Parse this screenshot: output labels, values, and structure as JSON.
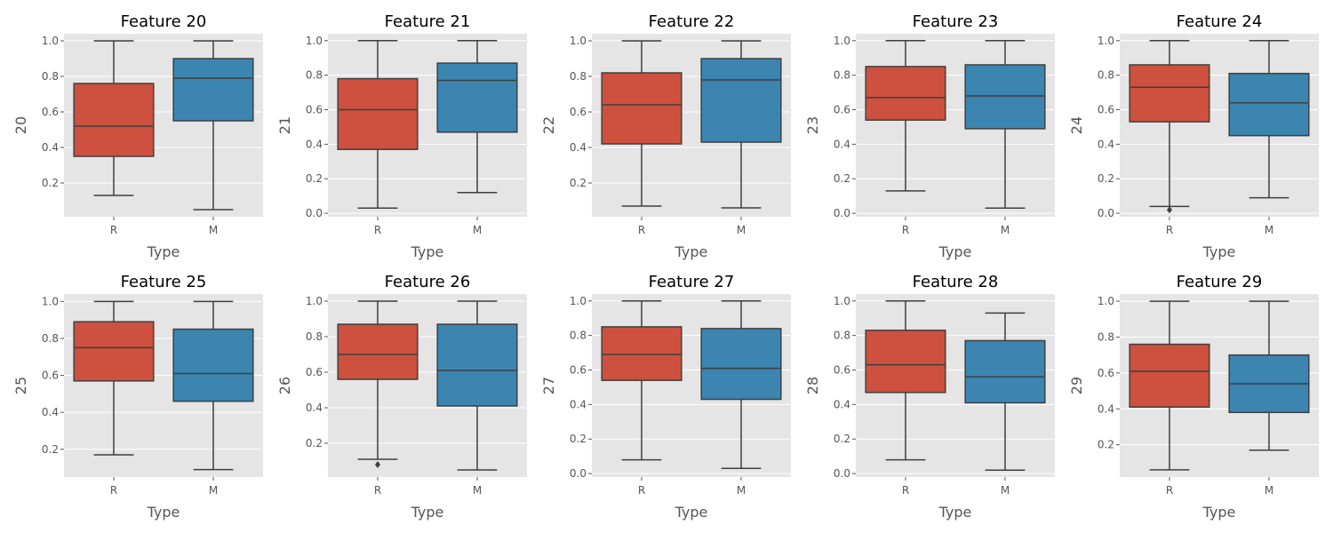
{
  "colors": {
    "background": "#ffffff",
    "panel_bg": "#e5e5e5",
    "grid": "#ffffff",
    "box_R": "#cd513e",
    "box_M": "#3b85b0",
    "line": "#3f3f3f",
    "tick_text": "#555555",
    "title_text": "#000000"
  },
  "chart_data": [
    {
      "type": "box",
      "title": "Feature 20",
      "xlabel": "Type",
      "ylabel": "20",
      "categories": [
        "R",
        "M"
      ],
      "ylim": [
        0.01,
        1.04
      ],
      "yticks": [
        "0.2",
        "0.4",
        "0.6",
        "0.8",
        "1.0"
      ],
      "boxes": [
        {
          "category": "R",
          "whisker_low": 0.13,
          "q1": 0.35,
          "median": 0.52,
          "q3": 0.76,
          "whisker_high": 1.0,
          "outliers": []
        },
        {
          "category": "M",
          "whisker_low": 0.05,
          "q1": 0.55,
          "median": 0.79,
          "q3": 0.9,
          "whisker_high": 1.0,
          "outliers": []
        }
      ]
    },
    {
      "type": "box",
      "title": "Feature 21",
      "xlabel": "Type",
      "ylabel": "21",
      "categories": [
        "R",
        "M"
      ],
      "ylim": [
        -0.02,
        1.04
      ],
      "yticks": [
        "0.0",
        "0.2",
        "0.4",
        "0.6",
        "0.8",
        "1.0"
      ],
      "boxes": [
        {
          "category": "R",
          "whisker_low": 0.03,
          "q1": 0.37,
          "median": 0.6,
          "q3": 0.78,
          "whisker_high": 1.0,
          "outliers": []
        },
        {
          "category": "M",
          "whisker_low": 0.12,
          "q1": 0.47,
          "median": 0.77,
          "q3": 0.87,
          "whisker_high": 1.0,
          "outliers": []
        }
      ]
    },
    {
      "type": "box",
      "title": "Feature 22",
      "xlabel": "Type",
      "ylabel": "22",
      "categories": [
        "R",
        "M"
      ],
      "ylim": [
        0.01,
        1.04
      ],
      "yticks": [
        "0.2",
        "0.4",
        "0.6",
        "0.8",
        "1.0"
      ],
      "boxes": [
        {
          "category": "R",
          "whisker_low": 0.07,
          "q1": 0.42,
          "median": 0.64,
          "q3": 0.82,
          "whisker_high": 1.0,
          "outliers": []
        },
        {
          "category": "M",
          "whisker_low": 0.06,
          "q1": 0.43,
          "median": 0.78,
          "q3": 0.9,
          "whisker_high": 1.0,
          "outliers": []
        }
      ]
    },
    {
      "type": "box",
      "title": "Feature 23",
      "xlabel": "Type",
      "ylabel": "23",
      "categories": [
        "R",
        "M"
      ],
      "ylim": [
        -0.02,
        1.04
      ],
      "yticks": [
        "0.0",
        "0.2",
        "0.4",
        "0.6",
        "0.8",
        "1.0"
      ],
      "boxes": [
        {
          "category": "R",
          "whisker_low": 0.13,
          "q1": 0.54,
          "median": 0.67,
          "q3": 0.85,
          "whisker_high": 1.0,
          "outliers": []
        },
        {
          "category": "M",
          "whisker_low": 0.03,
          "q1": 0.49,
          "median": 0.68,
          "q3": 0.86,
          "whisker_high": 1.0,
          "outliers": []
        }
      ]
    },
    {
      "type": "box",
      "title": "Feature 24",
      "xlabel": "Type",
      "ylabel": "24",
      "categories": [
        "R",
        "M"
      ],
      "ylim": [
        -0.02,
        1.04
      ],
      "yticks": [
        "0.0",
        "0.2",
        "0.4",
        "0.6",
        "0.8",
        "1.0"
      ],
      "boxes": [
        {
          "category": "R",
          "whisker_low": 0.04,
          "q1": 0.53,
          "median": 0.73,
          "q3": 0.86,
          "whisker_high": 1.0,
          "outliers": [
            0.02
          ]
        },
        {
          "category": "M",
          "whisker_low": 0.09,
          "q1": 0.45,
          "median": 0.64,
          "q3": 0.81,
          "whisker_high": 1.0,
          "outliers": []
        }
      ]
    },
    {
      "type": "box",
      "title": "Feature 25",
      "xlabel": "Type",
      "ylabel": "25",
      "categories": [
        "R",
        "M"
      ],
      "ylim": [
        0.05,
        1.04
      ],
      "yticks": [
        "0.2",
        "0.4",
        "0.6",
        "0.8",
        "1.0"
      ],
      "boxes": [
        {
          "category": "R",
          "whisker_low": 0.17,
          "q1": 0.57,
          "median": 0.75,
          "q3": 0.89,
          "whisker_high": 1.0,
          "outliers": []
        },
        {
          "category": "M",
          "whisker_low": 0.09,
          "q1": 0.46,
          "median": 0.61,
          "q3": 0.85,
          "whisker_high": 1.0,
          "outliers": []
        }
      ]
    },
    {
      "type": "box",
      "title": "Feature 26",
      "xlabel": "Type",
      "ylabel": "26",
      "categories": [
        "R",
        "M"
      ],
      "ylim": [
        0.01,
        1.04
      ],
      "yticks": [
        "0.2",
        "0.4",
        "0.6",
        "0.8",
        "1.0"
      ],
      "boxes": [
        {
          "category": "R",
          "whisker_low": 0.11,
          "q1": 0.56,
          "median": 0.7,
          "q3": 0.87,
          "whisker_high": 1.0,
          "outliers": [
            0.08
          ]
        },
        {
          "category": "M",
          "whisker_low": 0.05,
          "q1": 0.41,
          "median": 0.61,
          "q3": 0.87,
          "whisker_high": 1.0,
          "outliers": []
        }
      ]
    },
    {
      "type": "box",
      "title": "Feature 27",
      "xlabel": "Type",
      "ylabel": "27",
      "categories": [
        "R",
        "M"
      ],
      "ylim": [
        -0.02,
        1.04
      ],
      "yticks": [
        "0.0",
        "0.2",
        "0.4",
        "0.6",
        "0.8",
        "1.0"
      ],
      "boxes": [
        {
          "category": "R",
          "whisker_low": 0.08,
          "q1": 0.54,
          "median": 0.69,
          "q3": 0.85,
          "whisker_high": 1.0,
          "outliers": []
        },
        {
          "category": "M",
          "whisker_low": 0.03,
          "q1": 0.43,
          "median": 0.61,
          "q3": 0.84,
          "whisker_high": 1.0,
          "outliers": []
        }
      ]
    },
    {
      "type": "box",
      "title": "Feature 28",
      "xlabel": "Type",
      "ylabel": "28",
      "categories": [
        "R",
        "M"
      ],
      "ylim": [
        -0.02,
        1.04
      ],
      "yticks": [
        "0.0",
        "0.2",
        "0.4",
        "0.6",
        "0.8",
        "1.0"
      ],
      "boxes": [
        {
          "category": "R",
          "whisker_low": 0.08,
          "q1": 0.47,
          "median": 0.63,
          "q3": 0.83,
          "whisker_high": 1.0,
          "outliers": []
        },
        {
          "category": "M",
          "whisker_low": 0.02,
          "q1": 0.41,
          "median": 0.56,
          "q3": 0.77,
          "whisker_high": 0.93,
          "outliers": []
        }
      ]
    },
    {
      "type": "box",
      "title": "Feature 29",
      "xlabel": "Type",
      "ylabel": "29",
      "categories": [
        "R",
        "M"
      ],
      "ylim": [
        0.02,
        1.04
      ],
      "yticks": [
        "0.2",
        "0.4",
        "0.6",
        "0.8",
        "1.0"
      ],
      "boxes": [
        {
          "category": "R",
          "whisker_low": 0.06,
          "q1": 0.41,
          "median": 0.61,
          "q3": 0.76,
          "whisker_high": 1.0,
          "outliers": []
        },
        {
          "category": "M",
          "whisker_low": 0.17,
          "q1": 0.38,
          "median": 0.54,
          "q3": 0.7,
          "whisker_high": 1.0,
          "outliers": []
        }
      ]
    }
  ]
}
